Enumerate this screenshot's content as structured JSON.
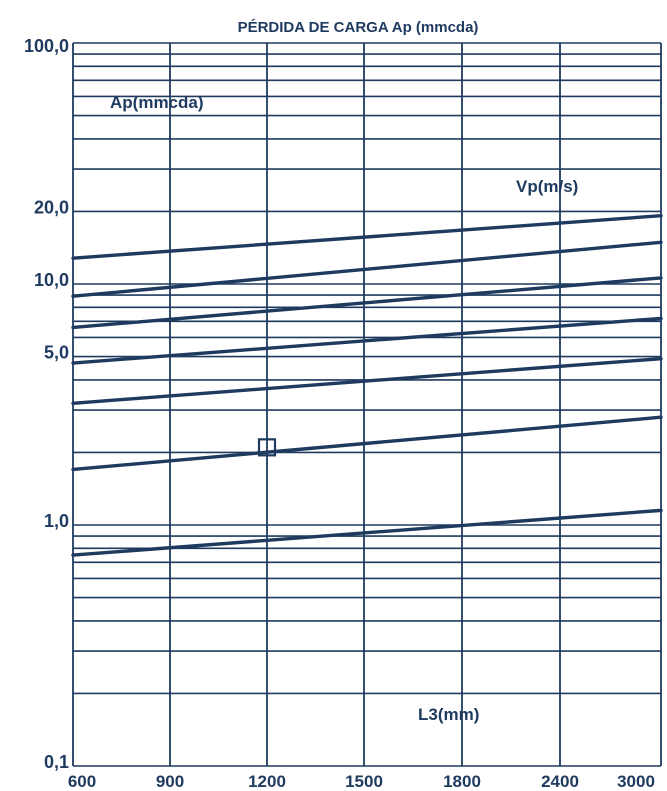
{
  "chart_data": {
    "type": "line",
    "title": "PÉRDIDA DE CARGA Ap (mmcda)",
    "y_axis_label": "Ap(mmcda)",
    "series_label": "Vp(m/s)",
    "x_axis_label": "L3(mm)",
    "y_scale": "log",
    "ylim": [
      0.1,
      100
    ],
    "y_tick_labels": [
      "100,0",
      "20,0",
      "10,0",
      "5,0",
      "1,0",
      "0,1"
    ],
    "y_tick_values": [
      100,
      20,
      10,
      5,
      1,
      0.1
    ],
    "x_tick_labels": [
      "600",
      "900",
      "1200",
      "1500",
      "1800",
      "2400",
      "3000"
    ],
    "grid": true,
    "colors": {
      "ink": "#1f3a5f",
      "background": "#ffffff"
    },
    "series": [
      {
        "x": [
          "600",
          "3000"
        ],
        "y": [
          12.8,
          19.2
        ]
      },
      {
        "x": [
          "600",
          "3000"
        ],
        "y": [
          8.9,
          14.9
        ]
      },
      {
        "x": [
          "600",
          "3000"
        ],
        "y": [
          6.6,
          10.6
        ]
      },
      {
        "x": [
          "600",
          "3000"
        ],
        "y": [
          4.7,
          7.2
        ]
      },
      {
        "x": [
          "600",
          "3000"
        ],
        "y": [
          3.2,
          4.9
        ]
      },
      {
        "x": [
          "600",
          "3000"
        ],
        "y": [
          1.7,
          2.8
        ]
      },
      {
        "x": [
          "600",
          "3000"
        ],
        "y": [
          0.75,
          1.15
        ]
      }
    ],
    "marker": {
      "x": "1200",
      "y": 2.1,
      "shape": "square"
    }
  }
}
